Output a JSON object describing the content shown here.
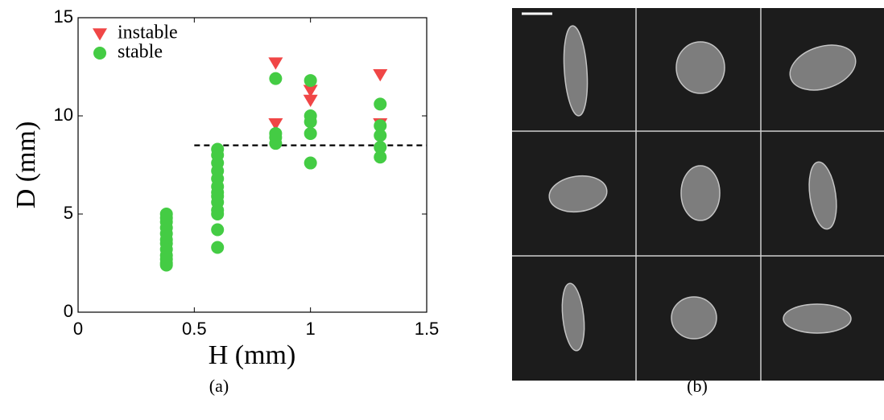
{
  "chart_data": {
    "type": "scatter",
    "xlabel": "H (mm)",
    "ylabel": "D (mm)",
    "xlim": [
      0,
      1.5
    ],
    "ylim": [
      0,
      15
    ],
    "xticks": [
      0,
      0.5,
      1,
      1.5
    ],
    "yticks": [
      0,
      5,
      10,
      15
    ],
    "legend": "upper-left",
    "series": [
      {
        "name": "instable",
        "color": "#f04646",
        "marker": "triangle-down",
        "x": [
          0.85,
          0.85,
          1,
          1,
          1.3,
          1.3
        ],
        "values": [
          12.7,
          9.6,
          11.3,
          10.8,
          12.1,
          9.6
        ]
      },
      {
        "name": "stable",
        "color": "#44cc44",
        "marker": "circle",
        "x": [
          0.38,
          0.38,
          0.38,
          0.38,
          0.38,
          0.38,
          0.38,
          0.38,
          0.38,
          0.38,
          0.38,
          0.38,
          0.6,
          0.6,
          0.6,
          0.6,
          0.6,
          0.6,
          0.6,
          0.6,
          0.6,
          0.6,
          0.6,
          0.6,
          0.6,
          0.85,
          0.85,
          0.85,
          0.85,
          1,
          1,
          1,
          1,
          1,
          1.3,
          1.3,
          1.3,
          1.3,
          1.3
        ],
        "values": [
          5.0,
          4.8,
          4.6,
          4.3,
          4.0,
          3.7,
          3.5,
          3.2,
          2.9,
          2.7,
          2.5,
          2.4,
          8.3,
          8.0,
          7.6,
          7.2,
          6.8,
          6.4,
          6.1,
          5.9,
          5.6,
          5.2,
          5.0,
          4.2,
          3.3,
          11.9,
          9.1,
          8.9,
          8.6,
          11.8,
          10.0,
          9.7,
          9.1,
          7.6,
          10.6,
          9.5,
          9.0,
          8.4,
          7.9
        ]
      }
    ],
    "reference_line": {
      "y": 8.5,
      "x": [
        0.5,
        1.5
      ],
      "color": "#000000"
    }
  },
  "captions": [
    "(a)",
    "(b)"
  ]
}
